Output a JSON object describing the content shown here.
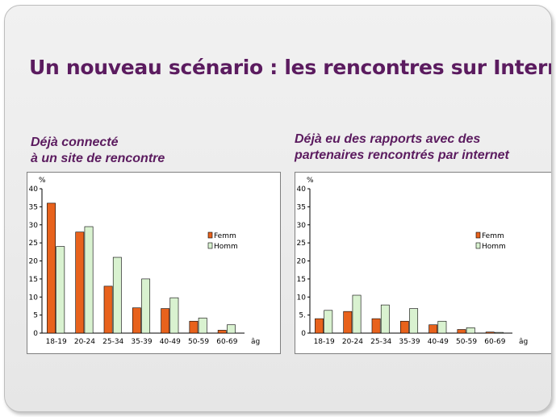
{
  "title": "Un nouveau scénario : les rencontres sur Internet",
  "colors": {
    "femmes": "#e8621c",
    "hommes": "#d9f2d0",
    "title": "#5b1b5f"
  },
  "chart_data": [
    {
      "type": "bar",
      "title_lines": [
        "Déjà connecté",
        "à un site de rencontre"
      ],
      "ylabel": "%",
      "xlabel": "âg",
      "ylim": [
        0,
        40
      ],
      "yticks": [
        0,
        5,
        10,
        15,
        20,
        25,
        30,
        35,
        40
      ],
      "ytick_labels": [
        "0",
        "5",
        "10",
        "15",
        "20",
        "25",
        "30",
        "35",
        "40"
      ],
      "categories": [
        "18-19",
        "20-24",
        "25-34",
        "35-39",
        "40-49",
        "50-59",
        "60-69"
      ],
      "legend_position": "right",
      "grid": false,
      "series": [
        {
          "name": "Femm",
          "values": [
            36,
            28,
            13,
            7,
            6.8,
            3.3,
            0.8
          ]
        },
        {
          "name": "Homm",
          "values": [
            24,
            29.5,
            21,
            15,
            9.8,
            4.2,
            2.3
          ]
        }
      ]
    },
    {
      "type": "bar",
      "title_lines": [
        "Déjà eu des rapports avec des",
        "partenaires rencontrés par internet"
      ],
      "ylabel": "%",
      "xlabel": "âg",
      "ylim": [
        0,
        40
      ],
      "yticks": [
        0,
        5,
        10,
        15,
        20,
        25,
        30,
        35,
        40
      ],
      "ytick_labels": [
        "0",
        "5.",
        "10",
        "15",
        "20",
        "25",
        "30",
        "35",
        "40"
      ],
      "categories": [
        "18-19",
        "20-24",
        "25-34",
        "35-39",
        "40-49",
        "50-59",
        "60-69"
      ],
      "legend_position": "right",
      "grid": false,
      "series": [
        {
          "name": "Femm",
          "values": [
            4,
            6,
            4,
            3.3,
            2.3,
            1,
            0.3
          ]
        },
        {
          "name": "Homm",
          "values": [
            6.3,
            10.5,
            7.8,
            6.8,
            3.3,
            1.5,
            0.2
          ]
        }
      ]
    }
  ]
}
